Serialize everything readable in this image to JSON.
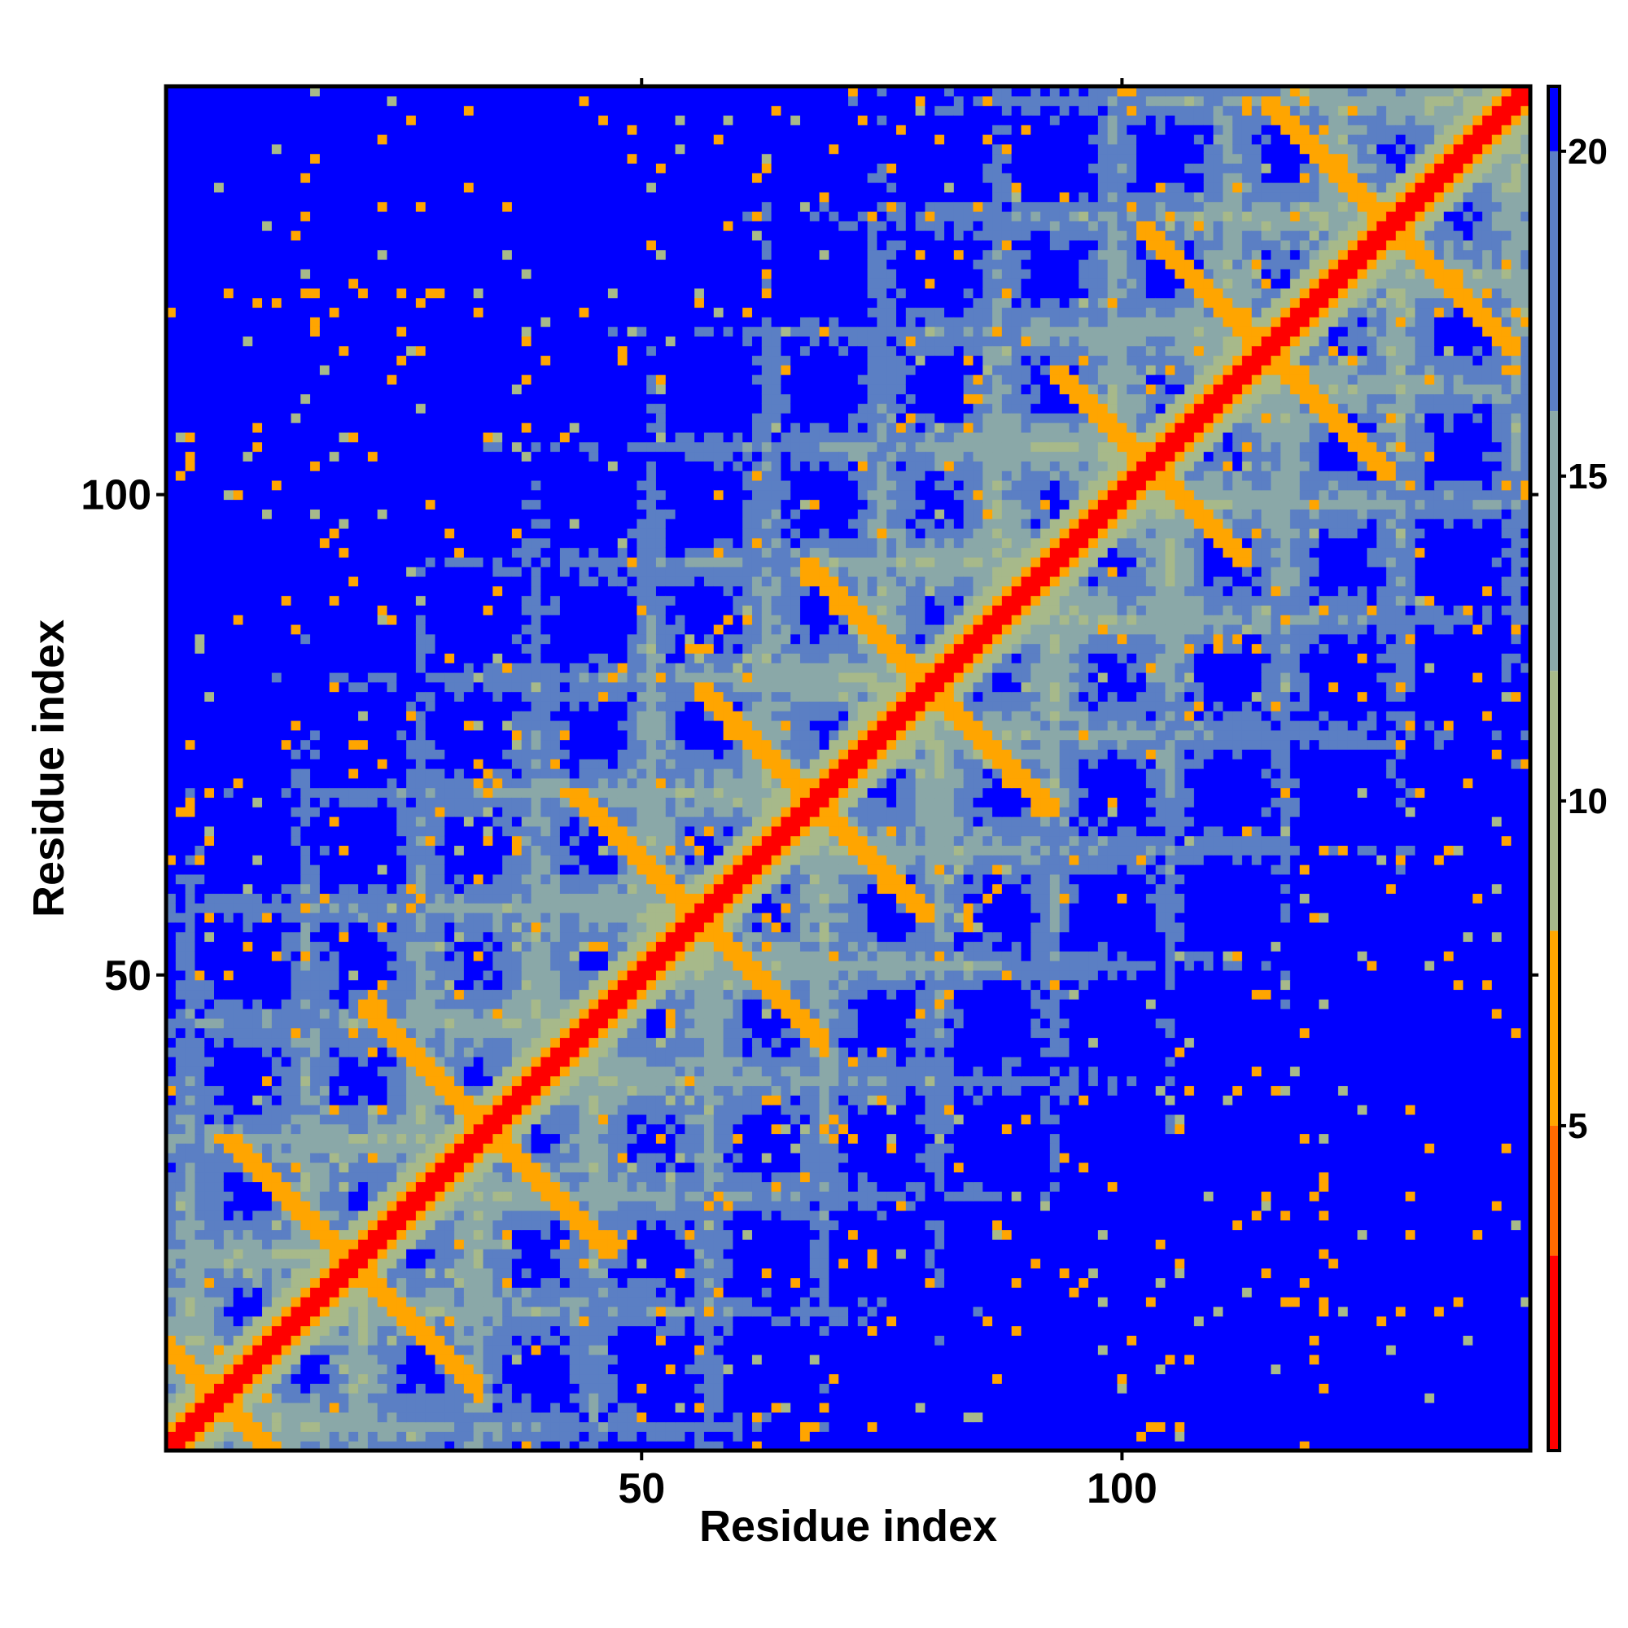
{
  "chart_data": {
    "type": "heatmap",
    "description_kind": "residue distance matrix",
    "n_residues": 142,
    "x_range": [
      1,
      142
    ],
    "y_range": [
      1,
      142
    ],
    "xlabel": "Residue index",
    "ylabel": "Residue index",
    "x_ticks": [
      50,
      100
    ],
    "y_ticks": [
      50,
      100
    ],
    "colorbar": {
      "ticks": [
        5,
        10,
        15,
        20
      ],
      "range": [
        0,
        21
      ],
      "bands": [
        {
          "from": 0,
          "to": 3,
          "color": "#ff0000"
        },
        {
          "from": 3,
          "to": 5,
          "color": "#ff6a00"
        },
        {
          "from": 5,
          "to": 8,
          "color": "#ffa500"
        },
        {
          "from": 8,
          "to": 12,
          "color": "#a7b98a"
        },
        {
          "from": 12,
          "to": 16,
          "color": "#8aa8a8"
        },
        {
          "from": 16,
          "to": 20,
          "color": "#5b7fc4"
        },
        {
          "from": 20,
          "to": 21,
          "color": "#0000ff"
        }
      ]
    },
    "features": {
      "diagonal": {
        "from": 1,
        "to": 142,
        "value": 2
      },
      "antidiagonal_contacts": [
        {
          "center": [
            6,
            6
          ],
          "half_length": 8,
          "value": 6
        },
        {
          "center": [
            20,
            20
          ],
          "half_length": 13,
          "value": 6
        },
        {
          "center": [
            34,
            34
          ],
          "half_length": 13,
          "value": 6
        },
        {
          "center": [
            56,
            56
          ],
          "half_length": 13,
          "value": 6
        },
        {
          "center": [
            68,
            68
          ],
          "half_length": 12,
          "value": 6
        },
        {
          "center": [
            80,
            80
          ],
          "half_length": 13,
          "value": 6
        },
        {
          "center": [
            103,
            103
          ],
          "half_length": 10,
          "value": 6
        },
        {
          "center": [
            115,
            115
          ],
          "half_length": 13,
          "value": 6
        },
        {
          "center": [
            128,
            128
          ],
          "half_length": 13,
          "value": 6
        }
      ],
      "background_value": 21,
      "grid_period": 12
    }
  }
}
